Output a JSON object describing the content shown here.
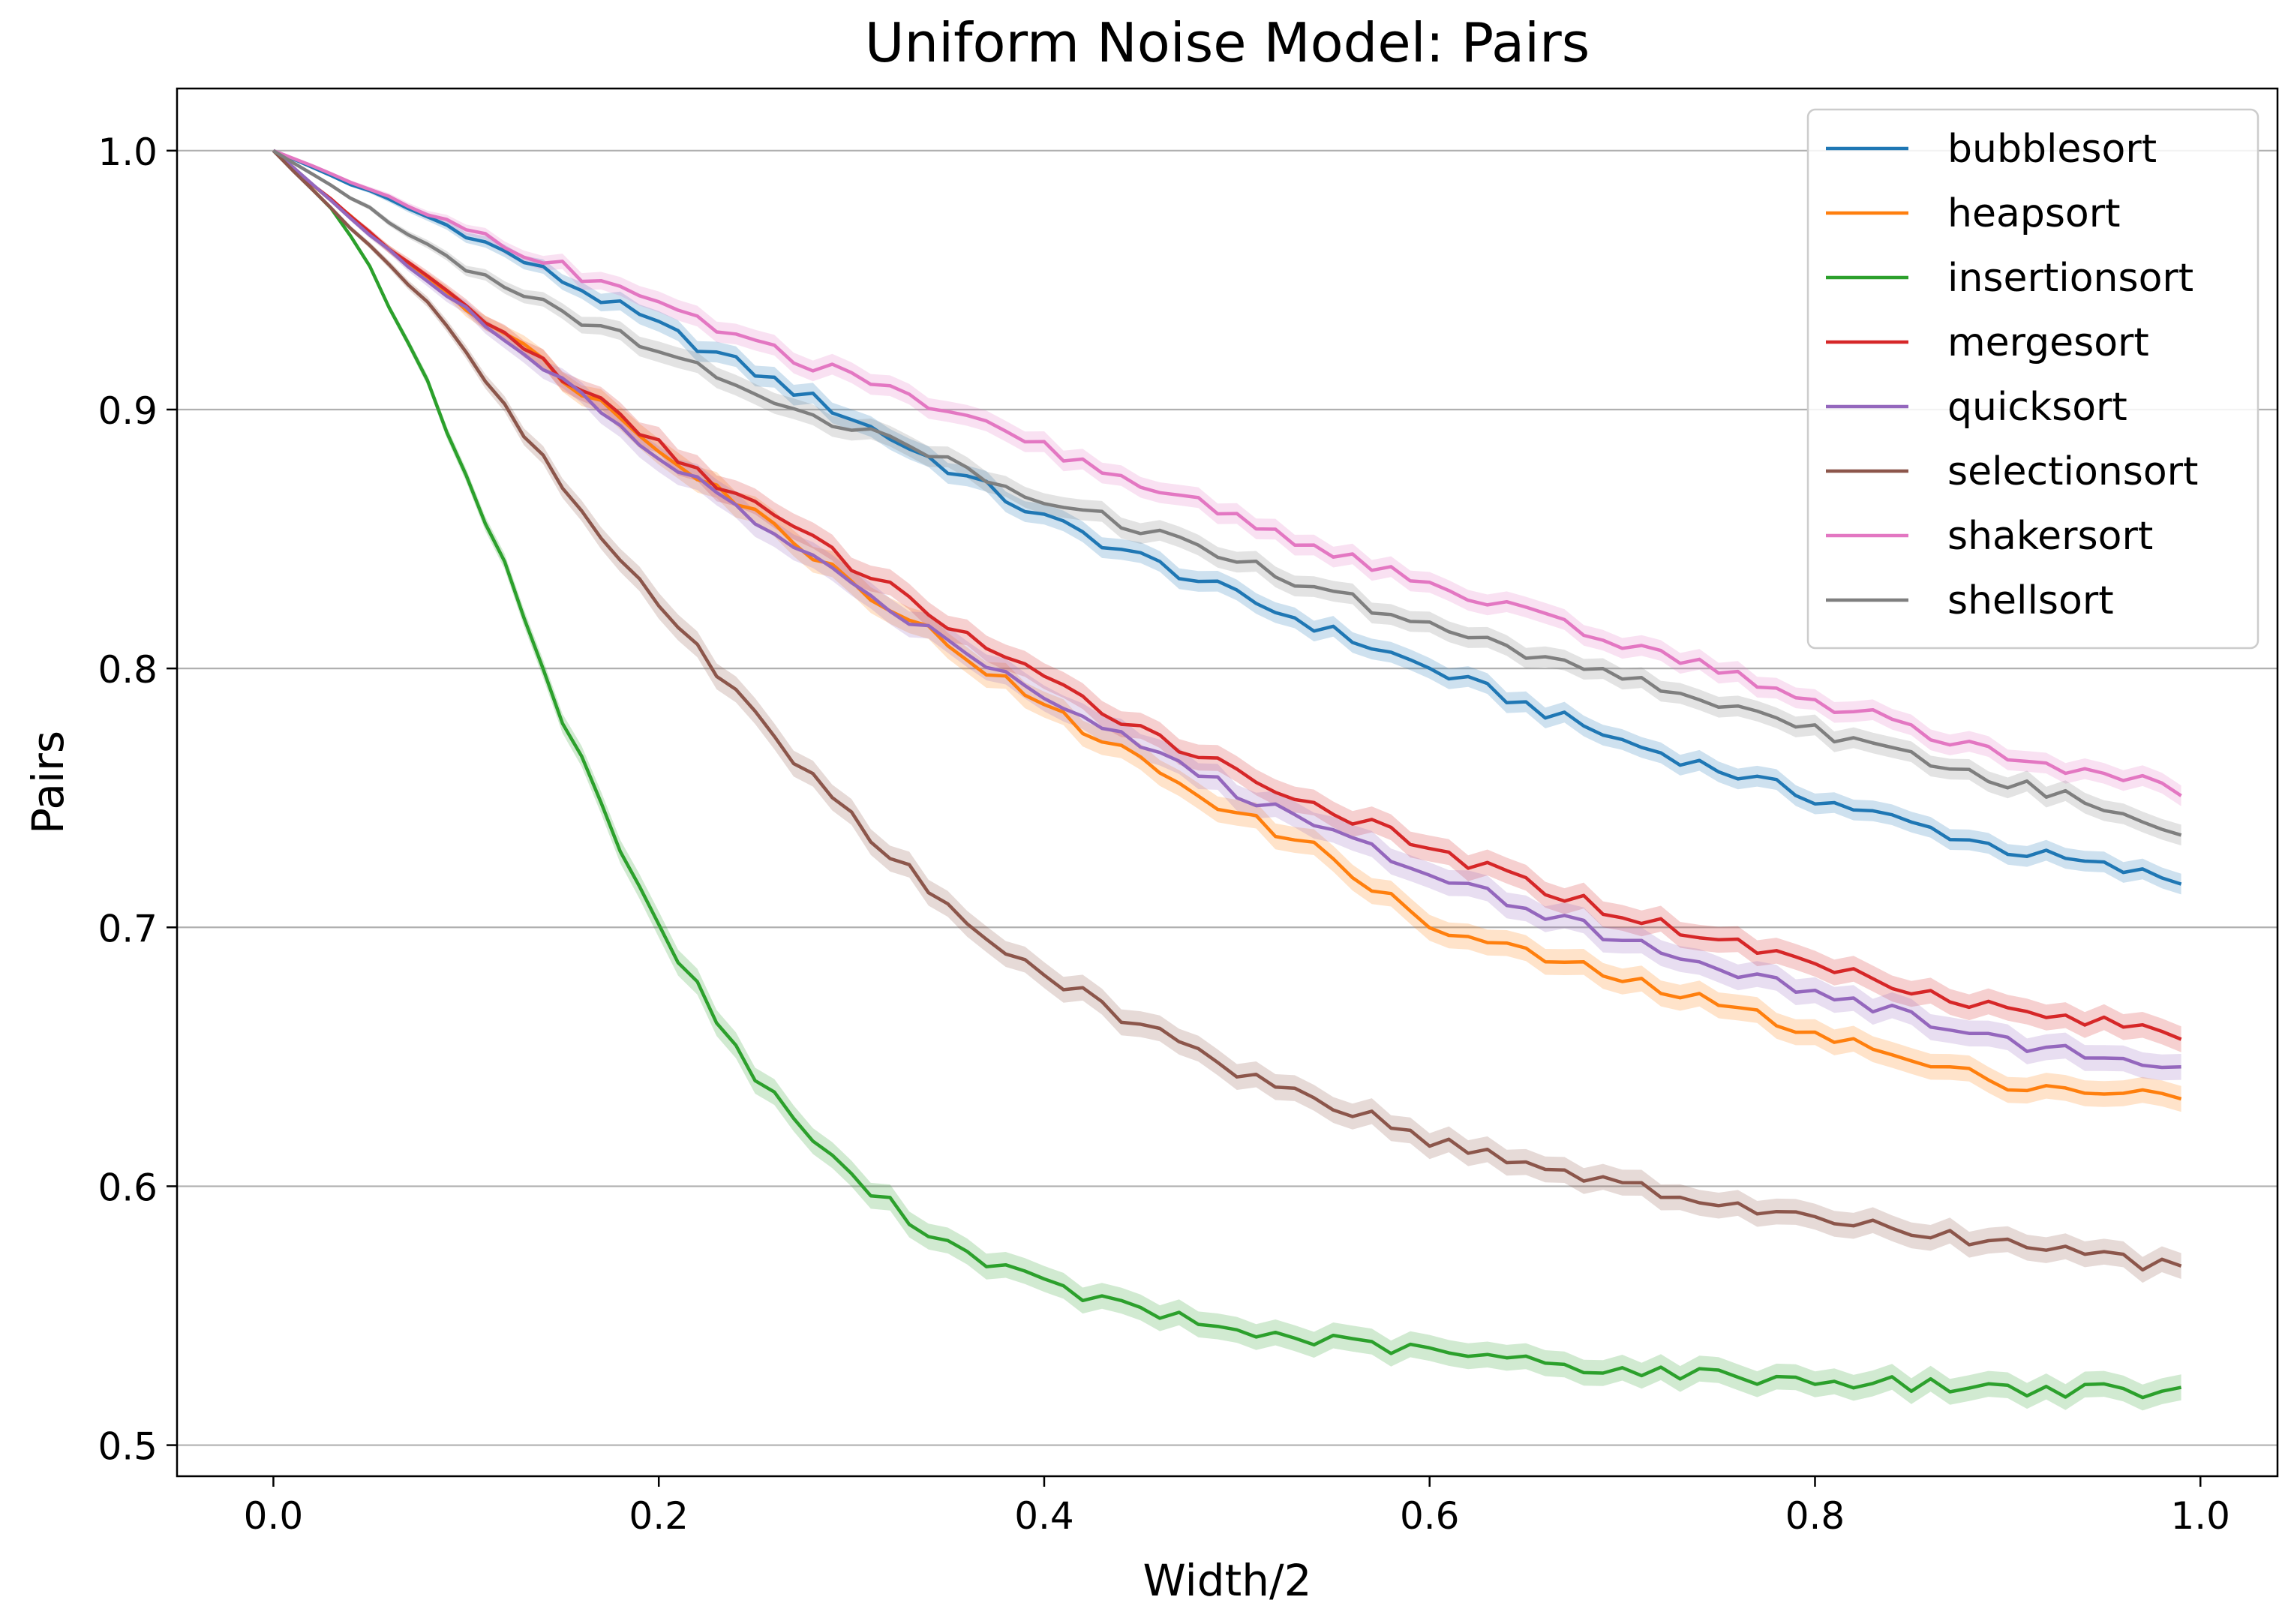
{
  "chart_data": {
    "type": "line",
    "title": "Uniform Noise Model: Pairs",
    "xlabel": "Width/2",
    "ylabel": "Pairs",
    "xlim": [
      -0.05,
      1.04
    ],
    "ylim": [
      0.488,
      1.024
    ],
    "xticks": [
      0.0,
      0.2,
      0.4,
      0.6,
      0.8,
      1.0
    ],
    "xtick_labels": [
      "0.0",
      "0.2",
      "0.4",
      "0.6",
      "0.8",
      "1.0"
    ],
    "yticks": [
      0.5,
      0.6,
      0.7,
      0.8,
      0.9,
      1.0
    ],
    "ytick_labels": [
      "0.5",
      "0.6",
      "0.7",
      "0.8",
      "0.9",
      "1.0"
    ],
    "grid": "horizontal",
    "legend_position": "top-right",
    "shaded_band": true,
    "x_range": [
      0.0,
      0.99
    ],
    "series": [
      {
        "name": "bubblesort",
        "color": "#1f77b4",
        "band": 0.004,
        "points": [
          [
            0,
            1
          ],
          [
            0.1,
            0.968
          ],
          [
            0.2,
            0.932
          ],
          [
            0.3,
            0.897
          ],
          [
            0.4,
            0.858
          ],
          [
            0.5,
            0.828
          ],
          [
            0.6,
            0.8
          ],
          [
            0.7,
            0.772
          ],
          [
            0.8,
            0.75
          ],
          [
            0.9,
            0.73
          ],
          [
            0.99,
            0.718
          ]
        ]
      },
      {
        "name": "heapsort",
        "color": "#ff7f0e",
        "band": 0.005,
        "points": [
          [
            0,
            1
          ],
          [
            0.05,
            0.968
          ],
          [
            0.1,
            0.94
          ],
          [
            0.2,
            0.886
          ],
          [
            0.3,
            0.834
          ],
          [
            0.4,
            0.785
          ],
          [
            0.5,
            0.744
          ],
          [
            0.55,
            0.727
          ],
          [
            0.6,
            0.7
          ],
          [
            0.7,
            0.68
          ],
          [
            0.8,
            0.66
          ],
          [
            0.85,
            0.648
          ],
          [
            0.9,
            0.64
          ],
          [
            0.99,
            0.634
          ]
        ]
      },
      {
        "name": "insertionsort",
        "color": "#2ca02c",
        "band": 0.005,
        "points": [
          [
            0,
            1
          ],
          [
            0.03,
            0.978
          ],
          [
            0.05,
            0.955
          ],
          [
            0.08,
            0.91
          ],
          [
            0.1,
            0.875
          ],
          [
            0.12,
            0.84
          ],
          [
            0.15,
            0.78
          ],
          [
            0.2,
            0.7
          ],
          [
            0.25,
            0.642
          ],
          [
            0.3,
            0.603
          ],
          [
            0.35,
            0.578
          ],
          [
            0.4,
            0.562
          ],
          [
            0.45,
            0.552
          ],
          [
            0.5,
            0.544
          ],
          [
            0.6,
            0.536
          ],
          [
            0.7,
            0.529
          ],
          [
            0.8,
            0.525
          ],
          [
            0.9,
            0.522
          ],
          [
            0.99,
            0.52
          ]
        ]
      },
      {
        "name": "mergesort",
        "color": "#d62728",
        "band": 0.005,
        "points": [
          [
            0,
            1
          ],
          [
            0.05,
            0.968
          ],
          [
            0.1,
            0.94
          ],
          [
            0.2,
            0.886
          ],
          [
            0.3,
            0.84
          ],
          [
            0.4,
            0.795
          ],
          [
            0.5,
            0.76
          ],
          [
            0.6,
            0.73
          ],
          [
            0.7,
            0.705
          ],
          [
            0.8,
            0.686
          ],
          [
            0.9,
            0.668
          ],
          [
            0.99,
            0.659
          ]
        ]
      },
      {
        "name": "quicksort",
        "color": "#9467bd",
        "band": 0.005,
        "points": [
          [
            0,
            1
          ],
          [
            0.05,
            0.968
          ],
          [
            0.1,
            0.938
          ],
          [
            0.2,
            0.882
          ],
          [
            0.3,
            0.832
          ],
          [
            0.4,
            0.79
          ],
          [
            0.5,
            0.752
          ],
          [
            0.6,
            0.722
          ],
          [
            0.7,
            0.695
          ],
          [
            0.8,
            0.675
          ],
          [
            0.9,
            0.656
          ],
          [
            0.99,
            0.645
          ]
        ]
      },
      {
        "name": "selectionsort",
        "color": "#8c564b",
        "band": 0.005,
        "points": [
          [
            0,
            1
          ],
          [
            0.04,
            0.97
          ],
          [
            0.08,
            0.942
          ],
          [
            0.1,
            0.922
          ],
          [
            0.15,
            0.87
          ],
          [
            0.2,
            0.825
          ],
          [
            0.25,
            0.782
          ],
          [
            0.3,
            0.742
          ],
          [
            0.35,
            0.708
          ],
          [
            0.4,
            0.682
          ],
          [
            0.45,
            0.662
          ],
          [
            0.5,
            0.645
          ],
          [
            0.55,
            0.632
          ],
          [
            0.6,
            0.618
          ],
          [
            0.7,
            0.6
          ],
          [
            0.8,
            0.587
          ],
          [
            0.9,
            0.578
          ],
          [
            0.99,
            0.568
          ]
        ]
      },
      {
        "name": "shakersort",
        "color": "#e377c2",
        "band": 0.004,
        "points": [
          [
            0,
            1
          ],
          [
            0.1,
            0.97
          ],
          [
            0.2,
            0.94
          ],
          [
            0.3,
            0.912
          ],
          [
            0.4,
            0.885
          ],
          [
            0.5,
            0.858
          ],
          [
            0.6,
            0.832
          ],
          [
            0.7,
            0.81
          ],
          [
            0.8,
            0.788
          ],
          [
            0.9,
            0.766
          ],
          [
            0.99,
            0.753
          ]
        ]
      },
      {
        "name": "shellsort",
        "color": "#7f7f7f",
        "band": 0.004,
        "points": [
          [
            0,
            1
          ],
          [
            0.1,
            0.955
          ],
          [
            0.2,
            0.922
          ],
          [
            0.3,
            0.893
          ],
          [
            0.4,
            0.866
          ],
          [
            0.5,
            0.842
          ],
          [
            0.6,
            0.816
          ],
          [
            0.7,
            0.797
          ],
          [
            0.8,
            0.776
          ],
          [
            0.9,
            0.756
          ],
          [
            0.99,
            0.738
          ]
        ]
      }
    ]
  }
}
